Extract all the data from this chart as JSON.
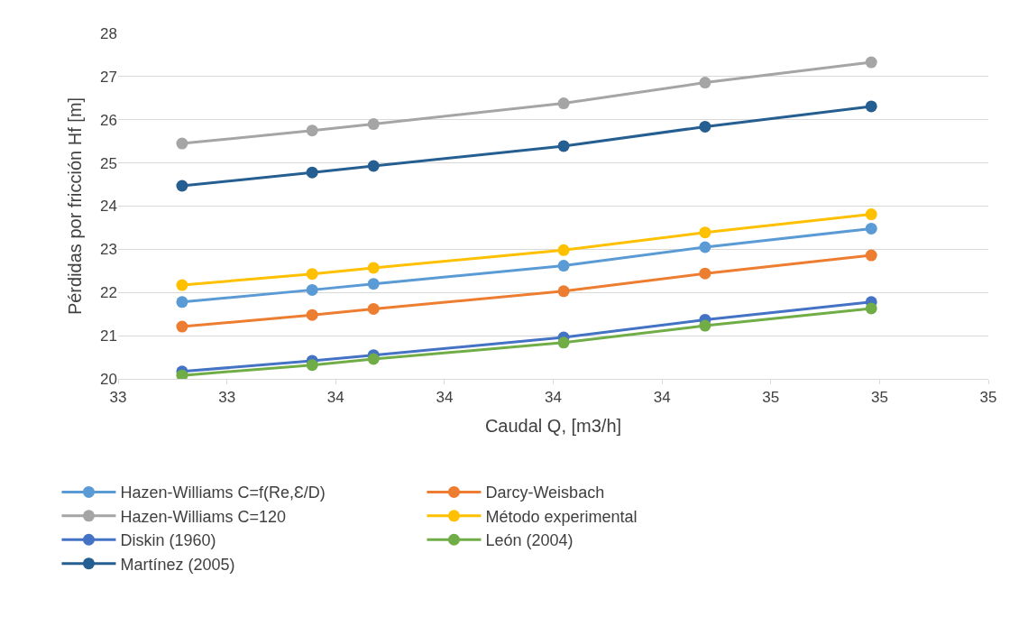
{
  "chart_data": {
    "type": "line",
    "xlabel": "Caudal Q, [m3/h]",
    "ylabel": "Pérdidas por fricción Hf [m]",
    "x": [
      33.147,
      33.446,
      33.587,
      34.024,
      34.349,
      34.731
    ],
    "xlim": [
      33,
      35
    ],
    "xticks": [
      {
        "value": 33,
        "label": "33"
      },
      {
        "value": 33.25,
        "label": "33"
      },
      {
        "value": 33.5,
        "label": "34"
      },
      {
        "value": 33.75,
        "label": "34"
      },
      {
        "value": 34,
        "label": "34"
      },
      {
        "value": 34.25,
        "label": "34"
      },
      {
        "value": 34.5,
        "label": "35"
      },
      {
        "value": 34.75,
        "label": "35"
      },
      {
        "value": 35,
        "label": "35"
      }
    ],
    "ylim": [
      20,
      28
    ],
    "yticks": [
      20,
      21,
      22,
      23,
      24,
      25,
      26,
      27,
      28
    ],
    "grid": "y",
    "legend": "bottom",
    "marker": "circle",
    "line_style": "solid",
    "series": [
      {
        "name": "Hazen-Williams C=f(Re,Ɛ/D)",
        "color": "#5b9bd5",
        "values": [
          21.78,
          22.06,
          22.2,
          22.62,
          23.05,
          23.48
        ]
      },
      {
        "name": "Darcy-Weisbach",
        "color": "#ed7d31",
        "values": [
          21.21,
          21.48,
          21.62,
          22.03,
          22.44,
          22.86
        ]
      },
      {
        "name": "Hazen-Williams C=120",
        "color": "#a5a5a5",
        "values": [
          25.45,
          25.75,
          25.9,
          26.38,
          26.86,
          27.33
        ]
      },
      {
        "name": "Método experimental",
        "color": "#ffc000",
        "values": [
          22.17,
          22.43,
          22.57,
          22.98,
          23.39,
          23.81
        ]
      },
      {
        "name": "Diskin (1960)",
        "color": "#4472c4",
        "values": [
          20.17,
          20.42,
          20.55,
          20.96,
          21.37,
          21.78
        ]
      },
      {
        "name": "León (2004)",
        "color": "#70ad47",
        "values": [
          20.08,
          20.32,
          20.46,
          20.84,
          21.23,
          21.63
        ]
      },
      {
        "name": "Martínez (2005)",
        "color": "#255e91",
        "values": [
          24.47,
          24.78,
          24.93,
          25.39,
          25.84,
          26.31
        ]
      }
    ]
  }
}
